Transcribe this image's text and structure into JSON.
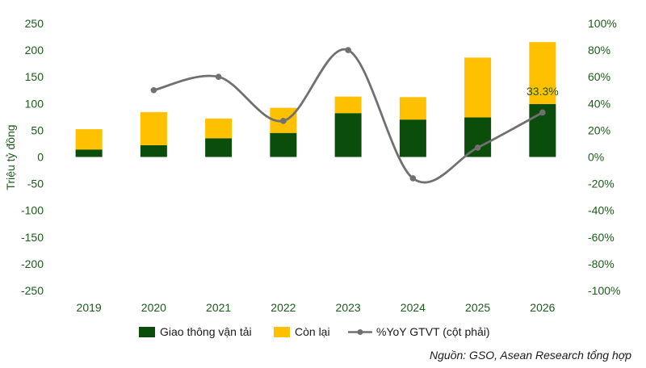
{
  "chart_data": {
    "type": "bar",
    "stacked": true,
    "categories": [
      "2019",
      "2020",
      "2021",
      "2022",
      "2023",
      "2024",
      "2025",
      "2026"
    ],
    "series": [
      {
        "name": "Giao thông vận tải",
        "axis": "left",
        "color": "#0b4d0b",
        "values": [
          14,
          22,
          35,
          45,
          82,
          70,
          74,
          99
        ]
      },
      {
        "name": "Còn lại",
        "axis": "left",
        "color": "#ffc000",
        "values": [
          38,
          62,
          37,
          47,
          31,
          42,
          112,
          116
        ]
      },
      {
        "name": "%YoY GTVT (cột phải)",
        "axis": "right",
        "type": "line",
        "color": "#707070",
        "values": [
          null,
          50,
          60,
          27,
          80,
          -16,
          7,
          33.3
        ]
      }
    ],
    "ylabel": "Triệu tỷ đồng",
    "ylim": [
      -250,
      250
    ],
    "yticks": [
      "250",
      "200",
      "150",
      "100",
      "50",
      "0",
      "-50",
      "-100",
      "-150",
      "-200",
      "-250"
    ],
    "y2lim": [
      -100,
      100
    ],
    "y2ticks": [
      "100%",
      "80%",
      "60%",
      "40%",
      "20%",
      "0%",
      "-20%",
      "-40%",
      "-60%",
      "-80%",
      "-100%"
    ],
    "annotation": {
      "category": "2026",
      "text": "33.3%"
    },
    "legend_position": "bottom"
  },
  "source": "Nguồn: GSO, Asean Research tổng hợp"
}
